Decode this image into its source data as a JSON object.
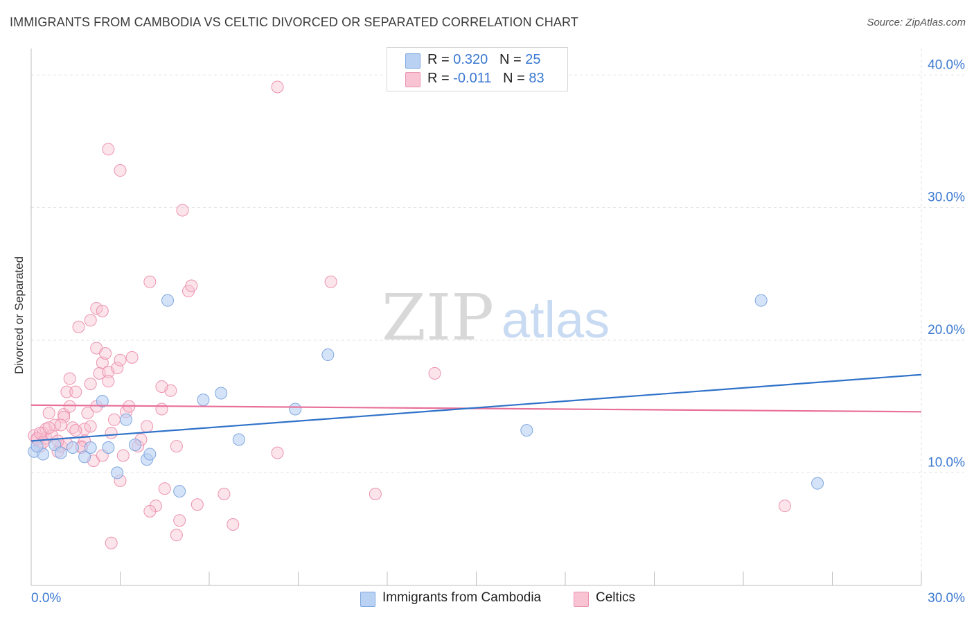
{
  "title": "IMMIGRANTS FROM CAMBODIA VS CELTIC DIVORCED OR SEPARATED CORRELATION CHART",
  "source": "Source: ZipAtlas.com",
  "watermark": {
    "zip": "ZIP",
    "atlas": "atlas"
  },
  "legend": {
    "rows": [
      {
        "r_label": "R = ",
        "r_value": "0.320",
        "n_label": "N = ",
        "n_value": "25"
      },
      {
        "r_label": "R = ",
        "r_value": "-0.011",
        "n_label": "N = ",
        "n_value": "83"
      }
    ]
  },
  "colors": {
    "blue_fill": "#b9d1f3",
    "blue_stroke": "#7ea7df",
    "blue_line": "#2f72c9",
    "pink_fill": "#f8c3d3",
    "pink_stroke": "#ec92b0",
    "pink_line": "#e8709a",
    "tick_label": "#3a78d0",
    "grid": "#e3e3e3"
  },
  "chart_data": {
    "type": "scatter",
    "title": "IMMIGRANTS FROM CAMBODIA VS CELTIC DIVORCED OR SEPARATED CORRELATION CHART",
    "xlabel": "",
    "ylabel": "Divorced or Separated",
    "xlim": [
      0,
      30
    ],
    "ylim": [
      1.5,
      42
    ],
    "x_tick_labels": [
      "0.0%",
      "30.0%"
    ],
    "y_ticks": [
      10,
      20,
      30,
      40
    ],
    "y_tick_labels": [
      "10.0%",
      "20.0%",
      "30.0%",
      "40.0%"
    ],
    "grid": true,
    "legend_position": "top-center",
    "series": [
      {
        "name": "Immigrants from Cambodia",
        "r": 0.32,
        "n": 25,
        "trend": [
          [
            0,
            12.4
          ],
          [
            30,
            17.4
          ]
        ],
        "points": [
          [
            0.1,
            11.6
          ],
          [
            0.4,
            11.4
          ],
          [
            0.8,
            12.1
          ],
          [
            1.0,
            11.5
          ],
          [
            1.4,
            11.9
          ],
          [
            1.8,
            11.2
          ],
          [
            2.0,
            11.9
          ],
          [
            2.4,
            15.4
          ],
          [
            2.6,
            11.9
          ],
          [
            2.9,
            10.0
          ],
          [
            3.2,
            14.0
          ],
          [
            3.5,
            12.1
          ],
          [
            3.9,
            11.0
          ],
          [
            4.0,
            11.4
          ],
          [
            4.6,
            23.0
          ],
          [
            5.0,
            8.6
          ],
          [
            5.8,
            15.5
          ],
          [
            6.4,
            16.0
          ],
          [
            7.0,
            12.5
          ],
          [
            8.9,
            14.8
          ],
          [
            10.0,
            18.9
          ],
          [
            16.7,
            13.2
          ],
          [
            24.6,
            23.0
          ],
          [
            26.5,
            9.2
          ],
          [
            0.2,
            12.0
          ]
        ]
      },
      {
        "name": "Celtics",
        "r": -0.011,
        "n": 83,
        "trend": [
          [
            0,
            15.1
          ],
          [
            30,
            14.6
          ]
        ],
        "points": [
          [
            0.1,
            12.8
          ],
          [
            0.2,
            12.5
          ],
          [
            0.3,
            12.0
          ],
          [
            0.4,
            13.0
          ],
          [
            0.5,
            12.6
          ],
          [
            0.5,
            13.3
          ],
          [
            0.6,
            14.5
          ],
          [
            0.7,
            12.8
          ],
          [
            0.8,
            13.6
          ],
          [
            0.9,
            11.6
          ],
          [
            1.0,
            12.0
          ],
          [
            1.1,
            14.4
          ],
          [
            1.2,
            16.1
          ],
          [
            1.2,
            12.2
          ],
          [
            1.3,
            15.0
          ],
          [
            1.3,
            17.1
          ],
          [
            1.4,
            13.4
          ],
          [
            1.5,
            16.1
          ],
          [
            1.6,
            21.0
          ],
          [
            1.7,
            12.0
          ],
          [
            1.8,
            12.4
          ],
          [
            1.8,
            13.3
          ],
          [
            1.9,
            14.5
          ],
          [
            2.0,
            16.7
          ],
          [
            2.0,
            21.5
          ],
          [
            2.0,
            13.5
          ],
          [
            2.1,
            10.9
          ],
          [
            2.2,
            19.4
          ],
          [
            2.2,
            15.0
          ],
          [
            2.3,
            17.5
          ],
          [
            2.4,
            18.3
          ],
          [
            2.4,
            11.3
          ],
          [
            2.5,
            19.0
          ],
          [
            2.6,
            17.6
          ],
          [
            2.6,
            16.9
          ],
          [
            2.7,
            13.0
          ],
          [
            2.8,
            14.0
          ],
          [
            2.9,
            17.9
          ],
          [
            3.0,
            18.5
          ],
          [
            3.0,
            9.4
          ],
          [
            3.2,
            14.6
          ],
          [
            3.3,
            15.0
          ],
          [
            3.4,
            18.7
          ],
          [
            3.6,
            12.0
          ],
          [
            3.7,
            12.5
          ],
          [
            3.9,
            13.5
          ],
          [
            4.0,
            24.4
          ],
          [
            4.2,
            7.5
          ],
          [
            4.4,
            14.8
          ],
          [
            4.5,
            8.8
          ],
          [
            4.7,
            16.2
          ],
          [
            4.9,
            12.0
          ],
          [
            5.0,
            6.4
          ],
          [
            5.1,
            29.8
          ],
          [
            5.3,
            23.7
          ],
          [
            5.4,
            24.1
          ],
          [
            5.6,
            7.6
          ],
          [
            6.5,
            8.4
          ],
          [
            6.8,
            6.1
          ],
          [
            2.6,
            34.4
          ],
          [
            3.0,
            32.8
          ],
          [
            8.3,
            39.1
          ],
          [
            8.3,
            11.5
          ],
          [
            10.1,
            24.4
          ],
          [
            11.6,
            8.4
          ],
          [
            13.6,
            17.5
          ],
          [
            25.4,
            7.5
          ],
          [
            0.2,
            12.6
          ],
          [
            0.3,
            13.0
          ],
          [
            0.4,
            12.3
          ],
          [
            0.6,
            13.4
          ],
          [
            0.9,
            12.4
          ],
          [
            1.1,
            14.2
          ],
          [
            1.5,
            13.2
          ],
          [
            1.7,
            11.9
          ],
          [
            2.2,
            22.4
          ],
          [
            2.4,
            22.2
          ],
          [
            2.7,
            4.7
          ],
          [
            4.0,
            7.1
          ],
          [
            4.9,
            5.3
          ],
          [
            4.4,
            16.5
          ],
          [
            3.1,
            11.3
          ],
          [
            1.0,
            13.6
          ]
        ]
      }
    ]
  }
}
